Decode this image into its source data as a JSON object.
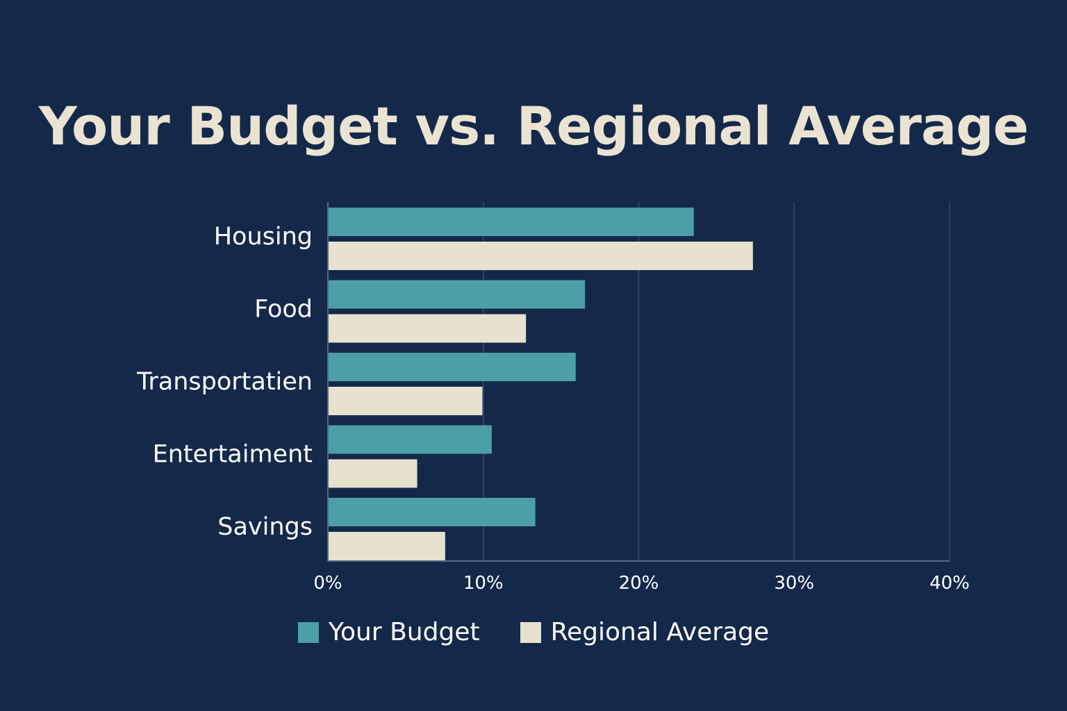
{
  "colors": {
    "background": "#14294a",
    "title": "#ebe3d2",
    "grid": "#3a4f72",
    "axis": "#6b7d99",
    "text": "#ffffff"
  },
  "chart_data": {
    "type": "bar",
    "orientation": "horizontal",
    "title": "Your Budget vs. Regional Average",
    "xlabel": "",
    "ylabel": "",
    "categories": [
      "Housing",
      "Food",
      "Transportatien",
      "Entertaiment",
      "Savings"
    ],
    "series": [
      {
        "name": "Your Budget",
        "color": "#4c9fa6",
        "values": [
          23.5,
          16.5,
          15.9,
          10.5,
          13.3
        ]
      },
      {
        "name": "Regional Average",
        "color": "#e7e1d0",
        "values": [
          27.3,
          12.7,
          9.9,
          5.7,
          7.5
        ]
      }
    ],
    "xlim": [
      0,
      40
    ],
    "ticks": [
      {
        "value": 0,
        "label": "0%"
      },
      {
        "value": 10,
        "label": "10%"
      },
      {
        "value": 20,
        "label": "20%"
      },
      {
        "value": 30,
        "label": "30%"
      },
      {
        "value": 40,
        "label": "40%"
      }
    ],
    "grid": true,
    "legend_position": "bottom-center"
  }
}
